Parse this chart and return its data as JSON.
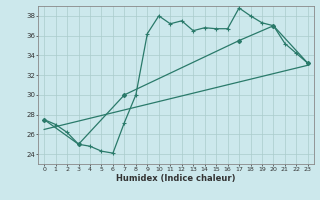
{
  "xlabel": "Humidex (Indice chaleur)",
  "bg_color": "#cce8ec",
  "grid_color": "#aacccc",
  "line_color": "#2a7a6a",
  "xlim": [
    -0.5,
    23.5
  ],
  "ylim": [
    23.0,
    39.0
  ],
  "yticks": [
    24,
    26,
    28,
    30,
    32,
    34,
    36,
    38
  ],
  "xticks": [
    0,
    1,
    2,
    3,
    4,
    5,
    6,
    7,
    8,
    9,
    10,
    11,
    12,
    13,
    14,
    15,
    16,
    17,
    18,
    19,
    20,
    21,
    22,
    23
  ],
  "line1_x": [
    0,
    1,
    2,
    3,
    4,
    5,
    6,
    7,
    8,
    9,
    10,
    11,
    12,
    13,
    14,
    15,
    16,
    17,
    18,
    19,
    20,
    21,
    22,
    23
  ],
  "line1_y": [
    27.5,
    27.0,
    26.2,
    25.0,
    24.8,
    24.3,
    24.1,
    27.2,
    30.0,
    36.2,
    38.0,
    37.2,
    37.5,
    36.5,
    36.8,
    36.7,
    36.7,
    38.8,
    38.0,
    37.3,
    37.0,
    35.2,
    34.2,
    33.2
  ],
  "line2_x": [
    0,
    3,
    7,
    17,
    20,
    23
  ],
  "line2_y": [
    27.5,
    25.0,
    30.0,
    35.5,
    37.0,
    33.2
  ],
  "line3_x": [
    0,
    23
  ],
  "line3_y": [
    26.5,
    33.0
  ]
}
